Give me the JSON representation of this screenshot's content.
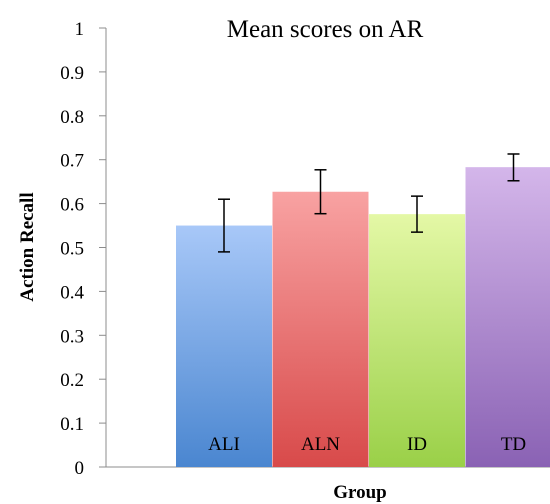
{
  "chart_data": {
    "type": "bar",
    "title": "Mean scores on AR",
    "xlabel": "Group",
    "ylabel": "Action Recall",
    "categories": [
      "ALI",
      "ALN",
      "ID",
      "TD"
    ],
    "values": [
      0.55,
      0.627,
      0.576,
      0.683
    ],
    "error_low": [
      0.49,
      0.577,
      0.535,
      0.652
    ],
    "error_high": [
      0.61,
      0.677,
      0.617,
      0.713
    ],
    "ylim": [
      0,
      1
    ],
    "yticks": [
      "0",
      "0.1",
      "0.2",
      "0.3",
      "0.4",
      "0.5",
      "0.6",
      "0.7",
      "0.8",
      "0.9",
      "1"
    ],
    "grid": false,
    "legend": "none",
    "colors": [
      {
        "top": "#a8c8f8",
        "bottom": "#4a86d0"
      },
      {
        "top": "#f8a2a2",
        "bottom": "#d84a4a"
      },
      {
        "top": "#e4f8a6",
        "bottom": "#9ad048"
      },
      {
        "top": "#d4b6ea",
        "bottom": "#8a62b4"
      }
    ]
  }
}
